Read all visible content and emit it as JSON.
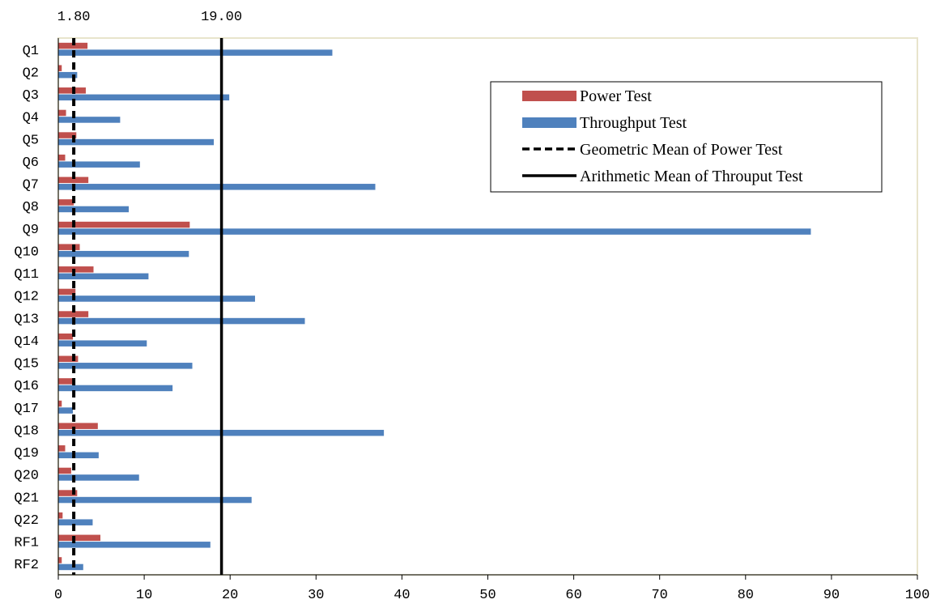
{
  "chart_data": {
    "type": "bar",
    "orientation": "horizontal",
    "categories": [
      "Q1",
      "Q2",
      "Q3",
      "Q4",
      "Q5",
      "Q6",
      "Q7",
      "Q8",
      "Q9",
      "Q10",
      "Q11",
      "Q12",
      "Q13",
      "Q14",
      "Q15",
      "Q16",
      "Q17",
      "Q18",
      "Q19",
      "Q20",
      "Q21",
      "Q22",
      "RF1",
      "RF2"
    ],
    "series": [
      {
        "name": "Power Test",
        "color": "#c0504d",
        "values": [
          3.4,
          0.4,
          3.2,
          0.9,
          2.1,
          0.8,
          3.5,
          1.8,
          15.3,
          2.5,
          4.1,
          2.0,
          3.5,
          1.7,
          2.3,
          1.7,
          0.4,
          4.6,
          0.8,
          1.5,
          2.2,
          0.5,
          4.9,
          0.4
        ]
      },
      {
        "name": "Throughput Test",
        "color": "#4f81bd",
        "values": [
          31.9,
          2.2,
          19.9,
          7.2,
          18.1,
          9.5,
          36.9,
          8.2,
          87.6,
          15.2,
          10.5,
          22.9,
          28.7,
          10.3,
          15.6,
          13.3,
          1.7,
          37.9,
          4.7,
          9.4,
          22.5,
          4.0,
          17.7,
          2.9
        ]
      }
    ],
    "reference_lines": [
      {
        "name": "Geometric Mean of Power Test",
        "value": 1.8,
        "label": "1.80",
        "style": "dashed",
        "color": "#000000"
      },
      {
        "name": "Arithmetic Mean of Throuput Test",
        "value": 19.0,
        "label": "19.00",
        "style": "solid",
        "color": "#000000"
      }
    ],
    "xlim": [
      0,
      100
    ],
    "x_ticks": [
      0,
      10,
      20,
      30,
      40,
      50,
      60,
      70,
      80,
      90,
      100
    ],
    "title": "",
    "xlabel": "",
    "ylabel": "",
    "grid": false,
    "legend_position": "top-right",
    "plot_border_color": "#e8e4cc"
  }
}
